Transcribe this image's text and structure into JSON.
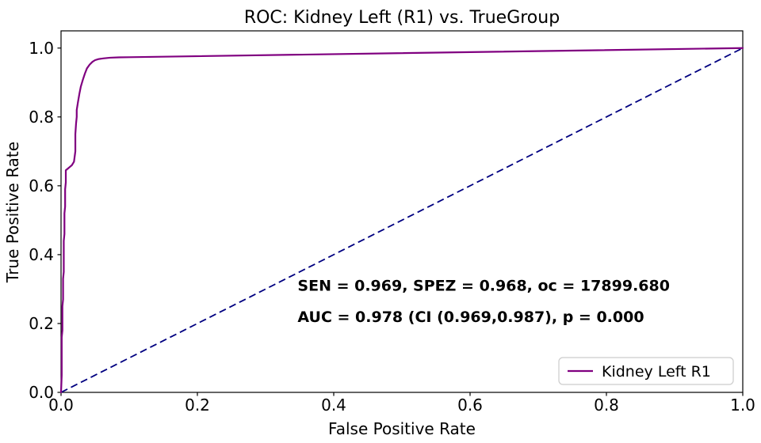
{
  "figure": {
    "background": "#ffffff",
    "spine_color": "#000000"
  },
  "annotation": {
    "line1": "SEN = 0.969, SPEZ = 0.968, oc = 17899.680",
    "line2": "AUC = 0.978 (CI (0.969,0.987), p = 0.000",
    "color": "#800080",
    "x_data": 0.347,
    "y1_data": 0.295,
    "y2_data": 0.205
  },
  "legend": {
    "label": "Kidney Left R1",
    "position": "lower right",
    "border_color": "#cccccc",
    "fill_color": "#ffffff"
  },
  "stats": {
    "SEN": 0.969,
    "SPEZ": 0.968,
    "oc": 17899.68,
    "AUC": 0.978,
    "CI_low": 0.969,
    "CI_high": 0.987,
    "p": 0.0
  },
  "chart_data": {
    "type": "line",
    "title": "ROC: Kidney Left (R1) vs. TrueGroup",
    "xlabel": "False Positive Rate",
    "ylabel": "True Positive Rate",
    "xlim": [
      0.0,
      1.0
    ],
    "ylim": [
      0.0,
      1.05
    ],
    "grid": false,
    "legend_position": "lower right",
    "xtick_labels": [
      "0.0",
      "0.2",
      "0.4",
      "0.6",
      "0.8",
      "1.0"
    ],
    "ytick_labels": [
      "0.0",
      "0.2",
      "0.4",
      "0.6",
      "0.8",
      "1.0"
    ],
    "xticks": [
      0.0,
      0.2,
      0.4,
      0.6,
      0.8,
      1.0
    ],
    "yticks": [
      0.0,
      0.2,
      0.4,
      0.6,
      0.8,
      1.0
    ],
    "series": [
      {
        "name": "Kidney Left R1",
        "color": "#800080",
        "style": "solid",
        "width": 2.2,
        "x": [
          0,
          0.001,
          0.001,
          0.002,
          0.002,
          0.003,
          0.003,
          0.004,
          0.004,
          0.005,
          0.005,
          0.006,
          0.006,
          0.007,
          0.007,
          0.01,
          0.013,
          0.016,
          0.019,
          0.021,
          0.021,
          0.022,
          0.023,
          0.023,
          0.025,
          0.027,
          0.029,
          0.032,
          0.035,
          0.038,
          0.042,
          0.046,
          0.05,
          0.055,
          0.062,
          0.072,
          0.085,
          0.1,
          1.0
        ],
        "y": [
          0,
          0.05,
          0.16,
          0.18,
          0.25,
          0.27,
          0.33,
          0.35,
          0.44,
          0.46,
          0.52,
          0.54,
          0.59,
          0.61,
          0.645,
          0.65,
          0.655,
          0.66,
          0.67,
          0.7,
          0.75,
          0.78,
          0.8,
          0.82,
          0.845,
          0.868,
          0.888,
          0.908,
          0.926,
          0.941,
          0.952,
          0.96,
          0.965,
          0.968,
          0.97,
          0.972,
          0.973,
          0.9735,
          1.0
        ]
      },
      {
        "name": "chance-diagonal",
        "color": "#000080",
        "style": "dashed",
        "width": 1.8,
        "x": [
          0.0,
          1.0
        ],
        "y": [
          0.0,
          1.0
        ]
      }
    ]
  }
}
